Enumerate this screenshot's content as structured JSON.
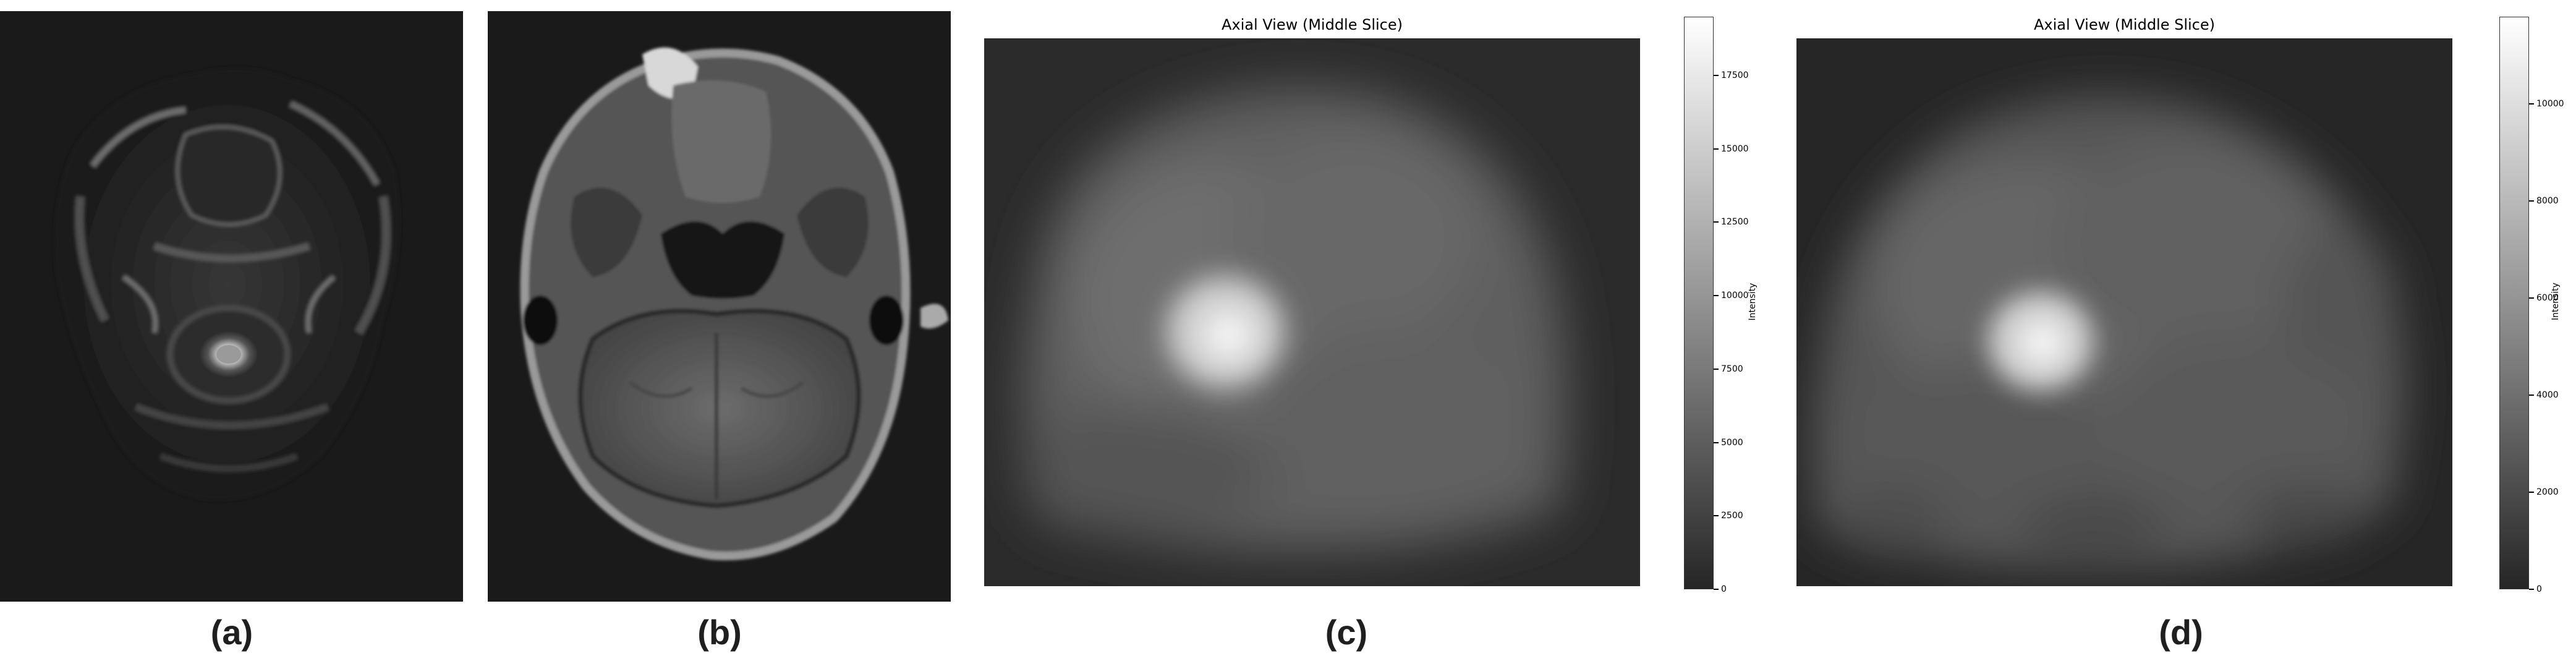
{
  "panels": [
    {
      "id": "a",
      "label": "(a)",
      "kind": "mri-t2-axial"
    },
    {
      "id": "b",
      "label": "(b)",
      "kind": "mri-t1-axial"
    },
    {
      "id": "c",
      "label": "(c)",
      "kind": "pet-axial",
      "title": "Axial View (Middle Slice)",
      "colorbar": {
        "label": "Intensity",
        "min": 0,
        "max": 19500,
        "ticks": [
          "0",
          "2500",
          "5000",
          "7500",
          "10000",
          "12500",
          "15000",
          "17500"
        ],
        "tick_values": [
          0,
          2500,
          5000,
          7500,
          10000,
          12500,
          15000,
          17500
        ]
      }
    },
    {
      "id": "d",
      "label": "(d)",
      "kind": "pet-axial",
      "title": "Axial View (Middle Slice)",
      "colorbar": {
        "label": "Intensity",
        "min": 0,
        "max": 11800,
        "ticks": [
          "0",
          "2000",
          "4000",
          "6000",
          "8000",
          "10000"
        ],
        "tick_values": [
          0,
          2000,
          4000,
          6000,
          8000,
          10000
        ]
      }
    }
  ],
  "colors": {
    "background": "#ffffff",
    "scan_background": "#1a1a1a",
    "label": "#1f1f1f"
  }
}
